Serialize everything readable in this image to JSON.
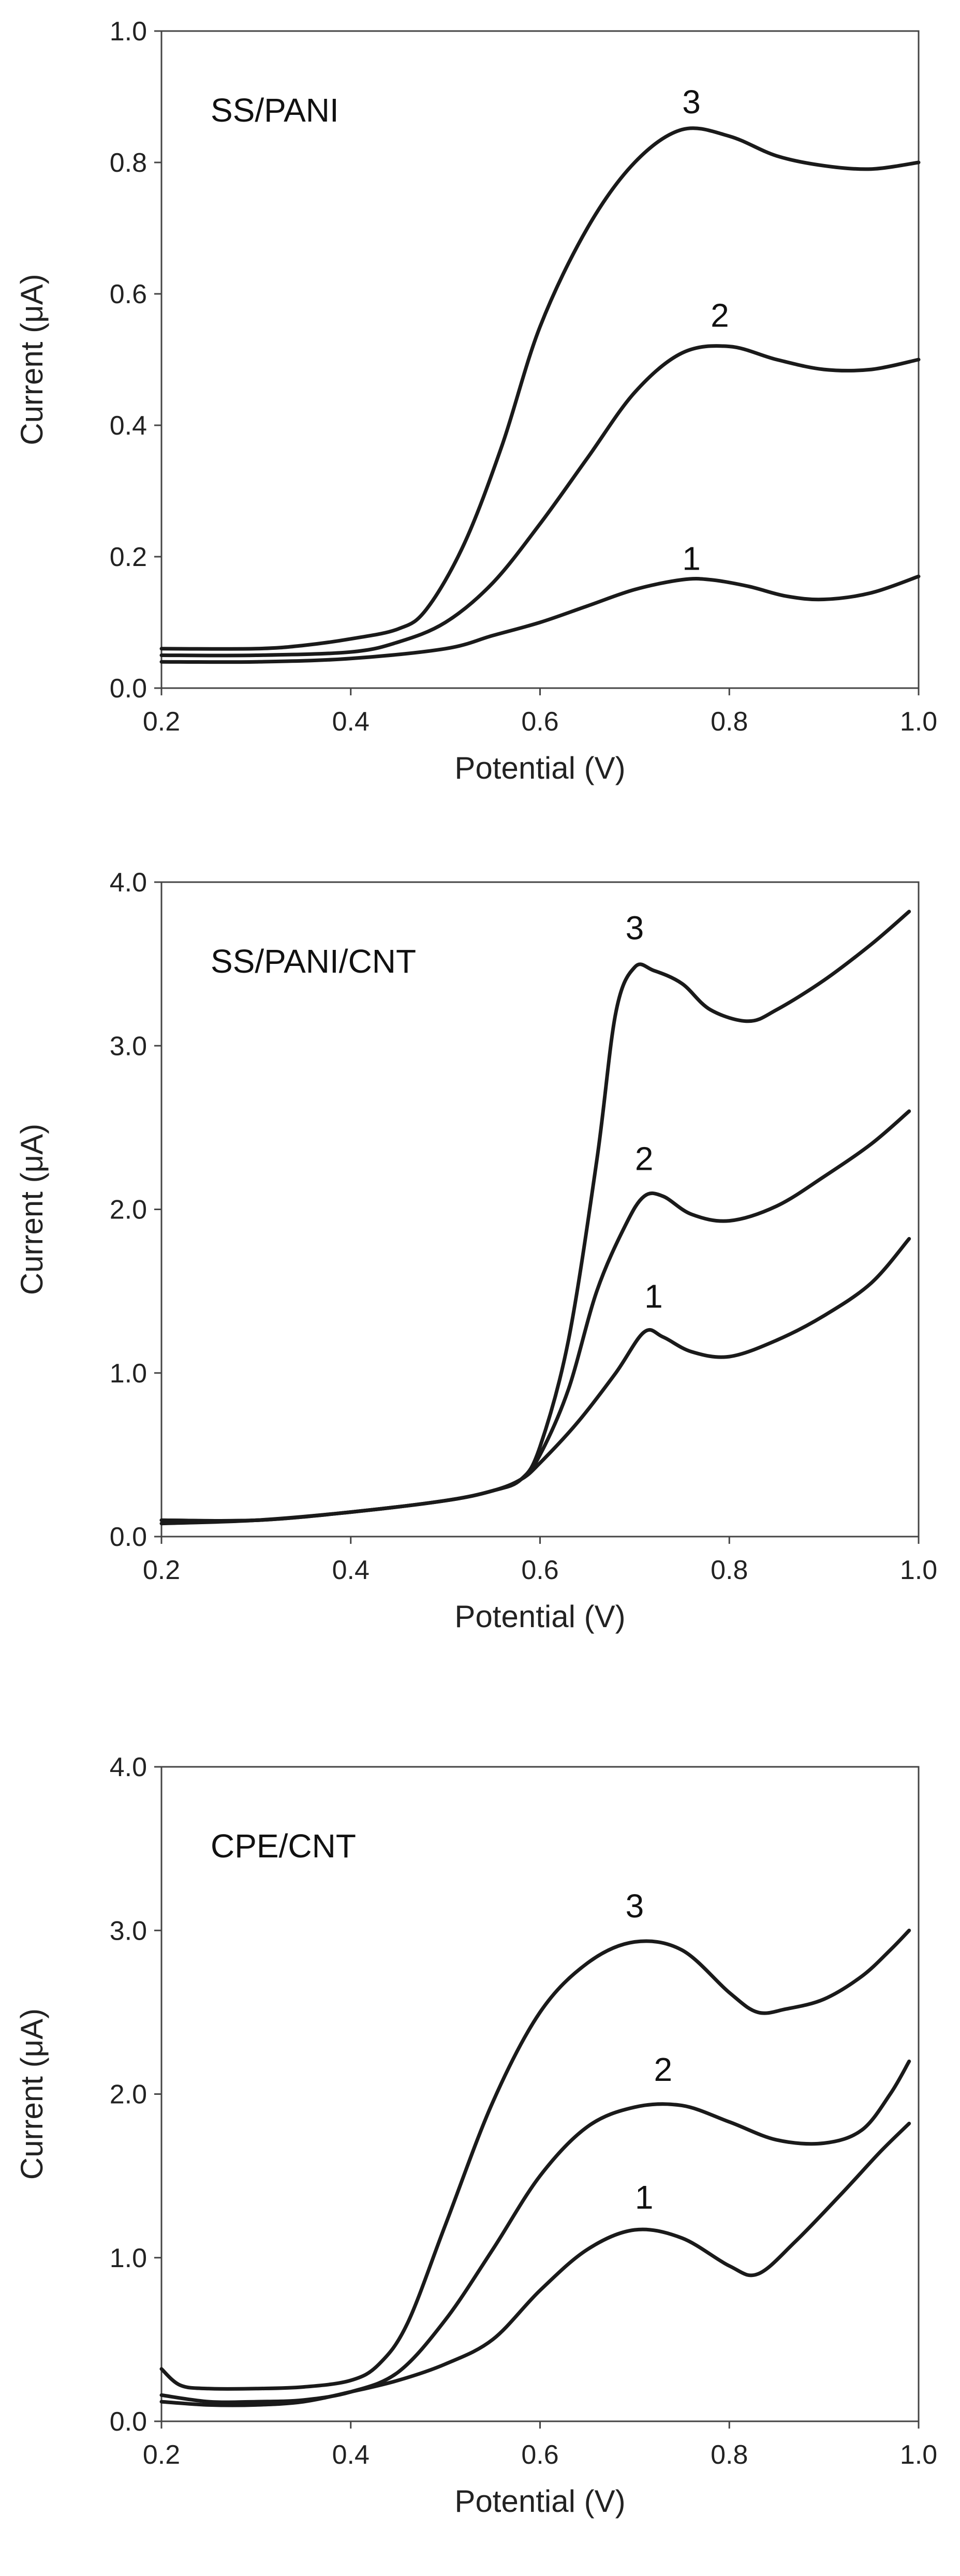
{
  "chart_data": [
    {
      "type": "line",
      "title": "SS/PANI",
      "xlabel": "Potential (V)",
      "ylabel": "Current (μA)",
      "xlim": [
        0.2,
        1.0
      ],
      "ylim": [
        0.0,
        1.0
      ],
      "xticks": [
        0.2,
        0.4,
        0.6,
        0.8,
        1.0
      ],
      "xtick_labels": [
        "0.2",
        "0.4",
        "0.6",
        "0.8",
        "1.0"
      ],
      "yticks": [
        0.0,
        0.2,
        0.4,
        0.6,
        0.8,
        1.0
      ],
      "ytick_labels": [
        "0.0",
        "0.2",
        "0.4",
        "0.6",
        "0.8",
        "1.0"
      ],
      "grid": false,
      "series": [
        {
          "name": "1",
          "x": [
            0.2,
            0.3,
            0.4,
            0.5,
            0.55,
            0.6,
            0.65,
            0.7,
            0.75,
            0.78,
            0.82,
            0.86,
            0.9,
            0.95,
            1.0
          ],
          "y": [
            0.04,
            0.04,
            0.045,
            0.06,
            0.08,
            0.1,
            0.125,
            0.15,
            0.165,
            0.165,
            0.155,
            0.14,
            0.135,
            0.145,
            0.17
          ]
        },
        {
          "name": "2",
          "x": [
            0.2,
            0.3,
            0.4,
            0.45,
            0.5,
            0.55,
            0.6,
            0.65,
            0.7,
            0.75,
            0.8,
            0.85,
            0.9,
            0.95,
            1.0
          ],
          "y": [
            0.05,
            0.05,
            0.055,
            0.07,
            0.1,
            0.16,
            0.25,
            0.35,
            0.45,
            0.51,
            0.52,
            0.5,
            0.485,
            0.485,
            0.5
          ]
        },
        {
          "name": "3",
          "x": [
            0.2,
            0.3,
            0.35,
            0.4,
            0.45,
            0.48,
            0.52,
            0.56,
            0.6,
            0.65,
            0.7,
            0.75,
            0.8,
            0.85,
            0.9,
            0.95,
            1.0
          ],
          "y": [
            0.06,
            0.06,
            0.065,
            0.075,
            0.09,
            0.12,
            0.22,
            0.37,
            0.55,
            0.7,
            0.8,
            0.85,
            0.84,
            0.81,
            0.795,
            0.79,
            0.8
          ]
        }
      ]
    },
    {
      "type": "line",
      "title": "SS/PANI/CNT",
      "xlabel": "Potential (V)",
      "ylabel": "Current (μA)",
      "xlim": [
        0.2,
        1.0
      ],
      "ylim": [
        0.0,
        4.0
      ],
      "xticks": [
        0.2,
        0.4,
        0.6,
        0.8,
        1.0
      ],
      "xtick_labels": [
        "0.2",
        "0.4",
        "0.6",
        "0.8",
        "1.0"
      ],
      "yticks": [
        0.0,
        1.0,
        2.0,
        3.0,
        4.0
      ],
      "ytick_labels": [
        "0.0",
        "1.0",
        "2.0",
        "3.0",
        "4.0"
      ],
      "grid": false,
      "series": [
        {
          "name": "1",
          "x": [
            0.2,
            0.3,
            0.4,
            0.5,
            0.55,
            0.58,
            0.6,
            0.64,
            0.68,
            0.71,
            0.73,
            0.76,
            0.8,
            0.85,
            0.9,
            0.95,
            0.99
          ],
          "y": [
            0.08,
            0.1,
            0.15,
            0.22,
            0.28,
            0.35,
            0.45,
            0.7,
            1.0,
            1.25,
            1.22,
            1.13,
            1.1,
            1.2,
            1.35,
            1.55,
            1.82
          ]
        },
        {
          "name": "2",
          "x": [
            0.2,
            0.3,
            0.4,
            0.5,
            0.55,
            0.58,
            0.6,
            0.63,
            0.66,
            0.69,
            0.71,
            0.73,
            0.76,
            0.8,
            0.85,
            0.9,
            0.95,
            0.99
          ],
          "y": [
            0.1,
            0.1,
            0.15,
            0.22,
            0.28,
            0.35,
            0.5,
            0.9,
            1.5,
            1.9,
            2.08,
            2.08,
            1.97,
            1.93,
            2.02,
            2.2,
            2.4,
            2.6
          ]
        },
        {
          "name": "3",
          "x": [
            0.2,
            0.3,
            0.4,
            0.5,
            0.55,
            0.58,
            0.6,
            0.63,
            0.66,
            0.68,
            0.7,
            0.72,
            0.75,
            0.78,
            0.82,
            0.85,
            0.9,
            0.95,
            0.99
          ],
          "y": [
            0.1,
            0.1,
            0.15,
            0.22,
            0.28,
            0.35,
            0.55,
            1.2,
            2.3,
            3.2,
            3.48,
            3.46,
            3.38,
            3.22,
            3.15,
            3.22,
            3.4,
            3.62,
            3.82
          ]
        }
      ]
    },
    {
      "type": "line",
      "title": "CPE/CNT",
      "xlabel": "Potential (V)",
      "ylabel": "Current (μA)",
      "xlim": [
        0.2,
        1.0
      ],
      "ylim": [
        0.0,
        4.0
      ],
      "xticks": [
        0.2,
        0.4,
        0.6,
        0.8,
        1.0
      ],
      "xtick_labels": [
        "0.2",
        "0.4",
        "0.6",
        "0.8",
        "1.0"
      ],
      "yticks": [
        0.0,
        1.0,
        2.0,
        3.0,
        4.0
      ],
      "ytick_labels": [
        "0.0",
        "1.0",
        "2.0",
        "3.0",
        "4.0"
      ],
      "grid": false,
      "series": [
        {
          "name": "1",
          "x": [
            0.2,
            0.25,
            0.3,
            0.35,
            0.4,
            0.45,
            0.5,
            0.55,
            0.6,
            0.65,
            0.7,
            0.75,
            0.8,
            0.83,
            0.87,
            0.92,
            0.96,
            0.99
          ],
          "y": [
            0.12,
            0.1,
            0.1,
            0.12,
            0.18,
            0.25,
            0.35,
            0.5,
            0.8,
            1.05,
            1.17,
            1.12,
            0.95,
            0.9,
            1.1,
            1.4,
            1.65,
            1.82
          ]
        },
        {
          "name": "2",
          "x": [
            0.2,
            0.25,
            0.3,
            0.35,
            0.4,
            0.45,
            0.5,
            0.55,
            0.6,
            0.65,
            0.7,
            0.75,
            0.8,
            0.85,
            0.9,
            0.94,
            0.97,
            0.99
          ],
          "y": [
            0.16,
            0.12,
            0.12,
            0.13,
            0.18,
            0.3,
            0.62,
            1.05,
            1.5,
            1.8,
            1.92,
            1.93,
            1.83,
            1.72,
            1.7,
            1.78,
            2.0,
            2.2
          ]
        },
        {
          "name": "3",
          "x": [
            0.2,
            0.22,
            0.25,
            0.3,
            0.35,
            0.4,
            0.43,
            0.46,
            0.5,
            0.55,
            0.6,
            0.65,
            0.7,
            0.75,
            0.8,
            0.83,
            0.86,
            0.9,
            0.94,
            0.97,
            0.99
          ],
          "y": [
            0.32,
            0.22,
            0.2,
            0.2,
            0.21,
            0.25,
            0.35,
            0.6,
            1.2,
            1.95,
            2.5,
            2.8,
            2.93,
            2.88,
            2.62,
            2.5,
            2.52,
            2.58,
            2.72,
            2.88,
            3.0
          ]
        }
      ]
    }
  ]
}
